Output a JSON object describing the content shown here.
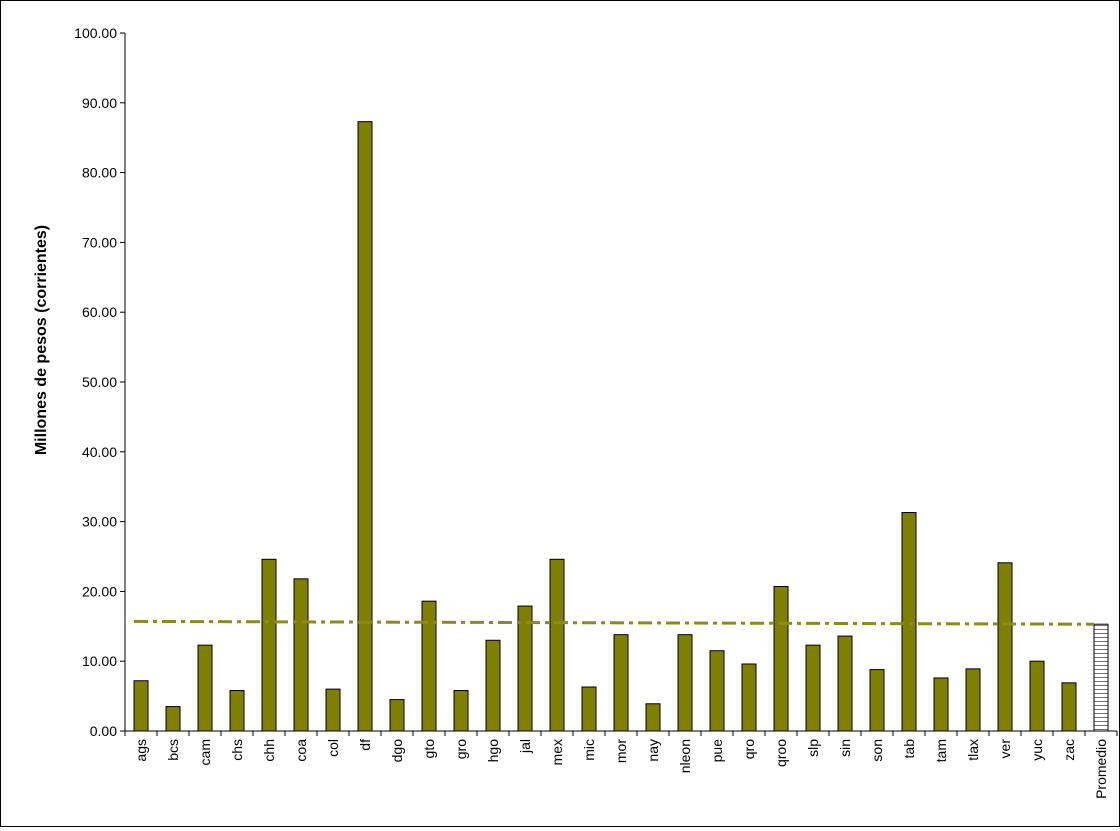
{
  "chart_data": {
    "type": "bar",
    "title": "",
    "xlabel": "",
    "ylabel": "Millones de pesos (corrientes)",
    "ylim": [
      0,
      100
    ],
    "y_ticks": [
      "0.00",
      "10.00",
      "20.00",
      "30.00",
      "40.00",
      "50.00",
      "60.00",
      "70.00",
      "80.00",
      "90.00",
      "100.00"
    ],
    "grid": false,
    "legend": "none",
    "categories": [
      "ags",
      "bcs",
      "cam",
      "chs",
      "chh",
      "coa",
      "col",
      "df",
      "dgo",
      "gto",
      "gro",
      "hgo",
      "jal",
      "mex",
      "mic",
      "mor",
      "nay",
      "nleon",
      "pue",
      "qro",
      "qroo",
      "slp",
      "sin",
      "son",
      "tab",
      "tam",
      "tlax",
      "ver",
      "yuc",
      "zac",
      "Promedio"
    ],
    "values": [
      7.2,
      3.5,
      12.3,
      5.8,
      24.6,
      21.8,
      6.0,
      87.3,
      4.5,
      18.6,
      5.8,
      13.0,
      17.9,
      24.6,
      6.3,
      13.8,
      3.9,
      13.8,
      11.5,
      9.6,
      20.7,
      12.3,
      13.6,
      8.8,
      31.3,
      7.6,
      8.9,
      24.1,
      10.0,
      6.9,
      15.3
    ],
    "average_line": {
      "start": 15.7,
      "end": 15.3
    },
    "colors": {
      "bar_fill": "#808000",
      "bar_stroke": "#000000",
      "average_line": "#8c8c1a",
      "promedio_stripe": "#808000"
    }
  }
}
